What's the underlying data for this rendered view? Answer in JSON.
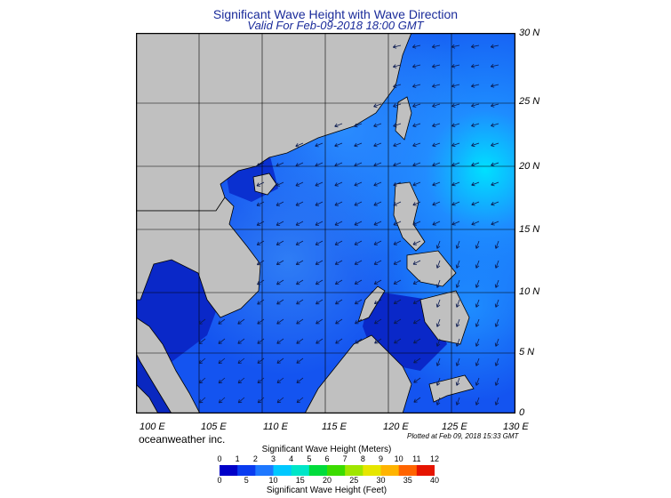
{
  "header": {
    "title": "Significant Wave Height with Wave Direction",
    "subtitle": "Valid For Feb-09-2018 18:00 GMT"
  },
  "map": {
    "region": "South China Sea",
    "lon_range": [
      100,
      130
    ],
    "lat_range": [
      0,
      30
    ],
    "lat_labels": [
      "30 N",
      "25 N",
      "20 N",
      "15 N",
      "10 N",
      "5 N",
      "0"
    ],
    "lon_labels": [
      "100 E",
      "105 E",
      "110 E",
      "115 E",
      "120 E",
      "125 E",
      "130 E"
    ],
    "grid": true,
    "land_color": "#c0c0c0",
    "dominant_wave_direction": "from northeast"
  },
  "footer": {
    "brand": "oceanweather inc.",
    "plotted": "Plotted at Feb 09, 2018 15:33 GMT"
  },
  "legend": {
    "title_meters": "Significant Wave Height (Meters)",
    "title_feet": "Significant Wave Height (Feet)",
    "meter_ticks": [
      "0",
      "1",
      "2",
      "3",
      "4",
      "5",
      "6",
      "7",
      "8",
      "9",
      "10",
      "11",
      "12"
    ],
    "feet_ticks": [
      "0",
      "5",
      "10",
      "15",
      "20",
      "25",
      "30",
      "35",
      "40"
    ],
    "colors": [
      "#0000c8",
      "#0a3cf0",
      "#1e78ff",
      "#00c8ff",
      "#00e6c8",
      "#00dc3c",
      "#3cdc00",
      "#a0e600",
      "#e6e600",
      "#ffb400",
      "#ff6400",
      "#e61400"
    ]
  }
}
